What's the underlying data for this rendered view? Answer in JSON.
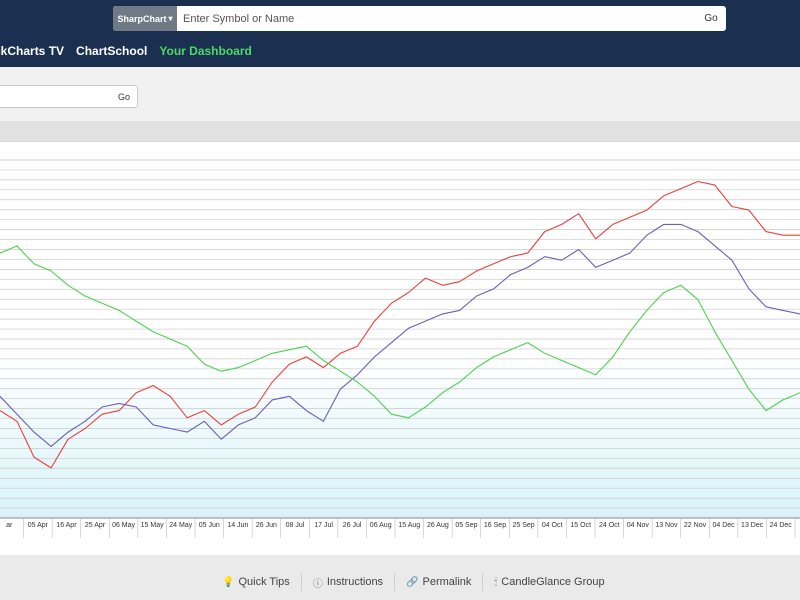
{
  "search": {
    "type_label": "SharpChart",
    "type_icon": "chevron-down-icon",
    "placeholder": "Enter Symbol or Name",
    "go_label": "Go"
  },
  "nav": {
    "items": [
      {
        "label": "ckCharts TV",
        "active": false
      },
      {
        "label": "ChartSchool",
        "active": false
      },
      {
        "label": "Your Dashboard",
        "active": true
      }
    ]
  },
  "subsearch": {
    "go_label": "Go"
  },
  "chart_data": {
    "type": "line",
    "title": "",
    "xlabel": "",
    "ylabel": "",
    "grid": true,
    "x_tick_labels": [
      "ar",
      "05 Apr",
      "16 Apr",
      "25 Apr",
      "06 May",
      "15 May",
      "24 May",
      "05 Jun",
      "14 Jun",
      "26 Jun",
      "08 Jul",
      "17 Jul",
      "26 Jul",
      "06 Aug",
      "15 Aug",
      "26 Aug",
      "05 Sep",
      "16 Sep",
      "25 Sep",
      "04 Oct",
      "15 Oct",
      "24 Oct",
      "04 Nov",
      "13 Nov",
      "22 Nov",
      "04 Dec",
      "13 Dec",
      "24 Dec"
    ],
    "ylim": [
      0,
      100
    ],
    "series": [
      {
        "color": "#e8413c",
        "values": [
          30,
          27,
          17,
          14,
          22,
          25,
          29,
          30,
          35,
          37,
          34,
          28,
          30,
          26,
          29,
          31,
          38,
          43,
          45,
          42,
          46,
          48,
          55,
          60,
          63,
          67,
          65,
          66,
          69,
          71,
          73,
          74,
          80,
          82,
          85,
          78,
          82,
          84,
          86,
          90,
          92,
          94,
          93,
          87,
          86,
          80,
          79,
          79
        ]
      },
      {
        "color": "#6a5fb5",
        "values": [
          34,
          29,
          24,
          20,
          24,
          27,
          31,
          32,
          31,
          26,
          25,
          24,
          27,
          22,
          26,
          28,
          33,
          34,
          30,
          27,
          36,
          40,
          45,
          49,
          53,
          55,
          57,
          58,
          62,
          64,
          68,
          70,
          73,
          72,
          75,
          70,
          72,
          74,
          79,
          82,
          82,
          80,
          76,
          72,
          64,
          59,
          58,
          57
        ]
      },
      {
        "color": "#4fd04f",
        "values": [
          74,
          76,
          71,
          69,
          65,
          62,
          60,
          58,
          55,
          52,
          50,
          48,
          43,
          41,
          42,
          44,
          46,
          47,
          48,
          44,
          41,
          38,
          34,
          29,
          28,
          31,
          35,
          38,
          42,
          45,
          47,
          49,
          46,
          44,
          42,
          40,
          45,
          52,
          58,
          63,
          65,
          61,
          52,
          44,
          36,
          30,
          33,
          35
        ]
      }
    ]
  },
  "footer": {
    "links": [
      {
        "label": "Quick Tips",
        "icon": "lightbulb-icon"
      },
      {
        "label": "Instructions",
        "icon": "info-icon"
      },
      {
        "label": "Permalink",
        "icon": "link-icon"
      },
      {
        "label": "CandleGlance Group",
        "icon": "candle-icon"
      }
    ]
  }
}
